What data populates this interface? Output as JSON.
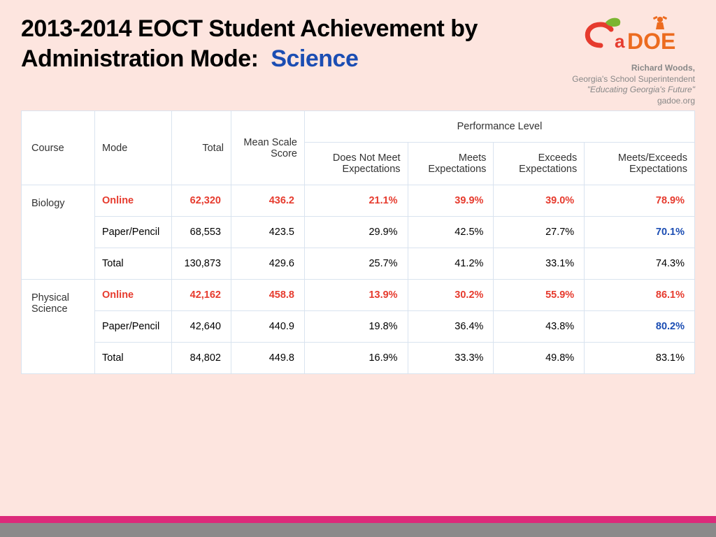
{
  "title": {
    "line": "2013-2014 EOCT Student Achievement by Administration Mode:",
    "subject": "Science",
    "subject_color": "#1b4db3"
  },
  "logo_caption": {
    "name": "Richard Woods,",
    "role": "Georgia's School Superintendent",
    "tagline": "\"Educating Georgia's Future\"",
    "site": "gadoe.org"
  },
  "colors": {
    "background": "#fde5df",
    "grid": "#d9e3ef",
    "highlight_red": "#e63b2e",
    "highlight_blue": "#1b4db3",
    "bar_pink": "#dc2a7a",
    "bar_gray": "#8a8a8a"
  },
  "table": {
    "headers": {
      "course": "Course",
      "mode": "Mode",
      "total": "Total",
      "mss": "Mean Scale Score",
      "perf_group": "Performance Level",
      "perf": [
        "Does Not Meet Expectations",
        "Meets Expectations",
        "Exceeds Expectations",
        "Meets/Exceeds Expectations"
      ]
    },
    "courses": [
      {
        "name": "Biology",
        "rows": [
          {
            "mode": "Online",
            "style": "red",
            "total": "62,320",
            "mss": "436.2",
            "p": [
              "21.1%",
              "39.9%",
              "39.0%",
              "78.9%"
            ],
            "last_style": "red"
          },
          {
            "mode": "Paper/Pencil",
            "style": "",
            "total": "68,553",
            "mss": "423.5",
            "p": [
              "29.9%",
              "42.5%",
              "27.7%",
              "70.1%"
            ],
            "last_style": "blueb"
          },
          {
            "mode": "Total",
            "style": "",
            "total": "130,873",
            "mss": "429.6",
            "p": [
              "25.7%",
              "41.2%",
              "33.1%",
              "74.3%"
            ],
            "last_style": ""
          }
        ]
      },
      {
        "name": "Physical Science",
        "rows": [
          {
            "mode": "Online",
            "style": "red",
            "total": "42,162",
            "mss": "458.8",
            "p": [
              "13.9%",
              "30.2%",
              "55.9%",
              "86.1%"
            ],
            "last_style": "red"
          },
          {
            "mode": "Paper/Pencil",
            "style": "",
            "total": "42,640",
            "mss": "440.9",
            "p": [
              "19.8%",
              "36.4%",
              "43.8%",
              "80.2%"
            ],
            "last_style": "blueb"
          },
          {
            "mode": "Total",
            "style": "",
            "total": "84,802",
            "mss": "449.8",
            "p": [
              "16.9%",
              "33.3%",
              "49.8%",
              "83.1%"
            ],
            "last_style": ""
          }
        ]
      }
    ]
  }
}
